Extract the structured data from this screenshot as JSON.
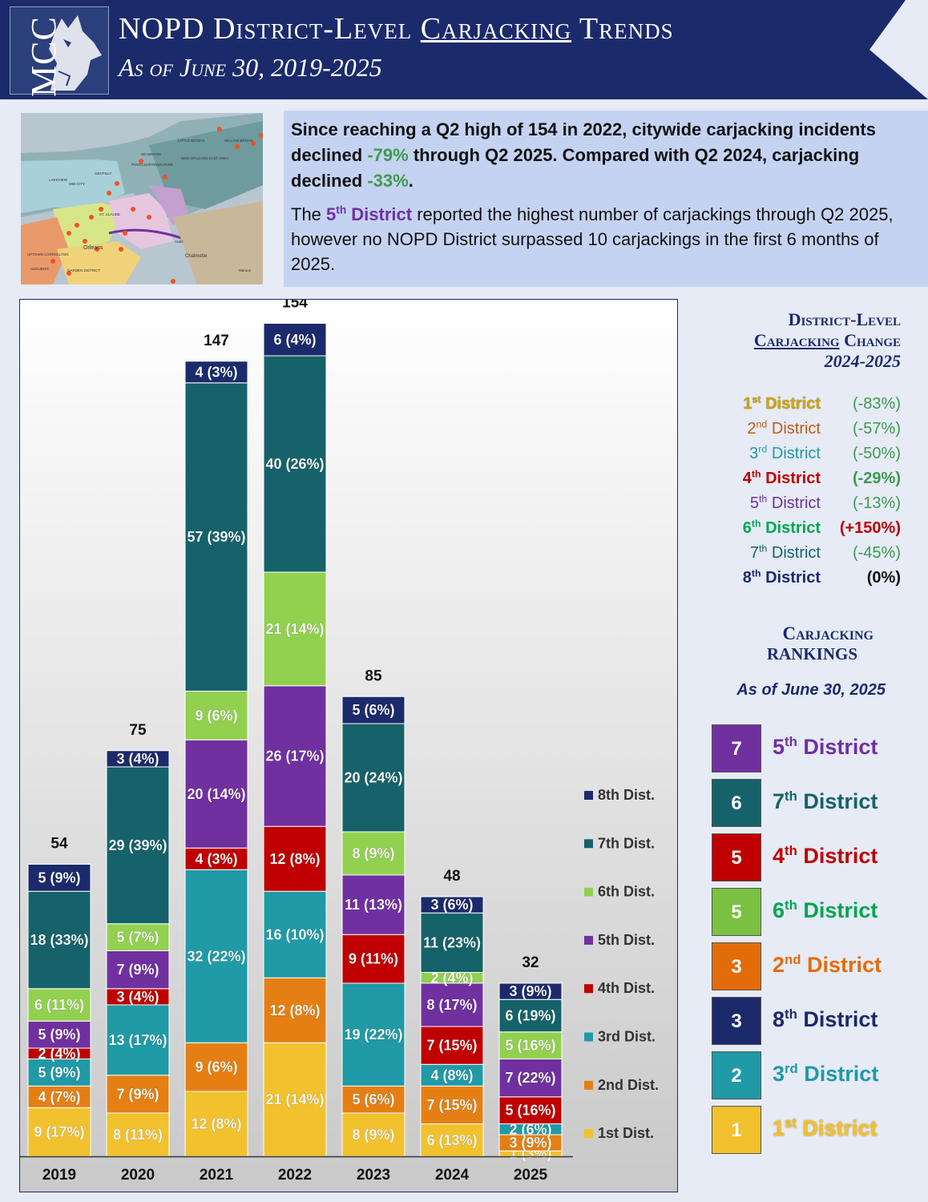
{
  "header": {
    "logo_text": "MCC",
    "title_pre": "NOPD District-Level ",
    "title_underlined": "Carjacking",
    "title_post": " Trends",
    "subtitle": "As of June 30, 2019-2025"
  },
  "colors": {
    "navy": "#1b2a6b",
    "teal_dark": "#16626a",
    "light_green": "#92d050",
    "purple": "#7030a0",
    "red": "#c00000",
    "teal": "#1f9aa6",
    "orange": "#e57f14",
    "yellow": "#f2c12e"
  },
  "map": {
    "labels": [
      "LITTLE WOODS",
      "WILLOW BROOK",
      "SEABROOK",
      "PONTCHARTRAIN PARK",
      "NEW ORLEANS EAST AREA",
      "MID-CITY",
      "LAKEVIEW",
      "GENTILLY",
      "ST. CLAUDE",
      "UPTOWN CARROLLTON",
      "AUDUBON",
      "GARDEN DISTRICT",
      "Chalmette",
      "Meraux",
      "Orleans",
      "Arabi"
    ]
  },
  "summary": {
    "p1_a": "Since reaching a Q2 high of 154 in 2022, citywide carjacking incidents declined ",
    "p1_b": "-79%",
    "p1_c": " through Q2 2025.  Compared with Q2 2024, carjacking declined ",
    "p1_d": "-33%",
    "p1_e": ".",
    "p2_a": "The ",
    "p2_b": "5",
    "p2_b_sup": "th",
    "p2_c": " District",
    "p2_d": " reported the highest number of carjackings through Q2 2025, however no NOPD District surpassed 10 carjackings in the first 6 months of 2025."
  },
  "chart_data": {
    "type": "bar",
    "stacked": true,
    "categories": [
      "2019",
      "2020",
      "2021",
      "2022",
      "2023",
      "2024",
      "2025"
    ],
    "totals": [
      "54",
      "75",
      "147",
      "154",
      "85",
      "48",
      "32"
    ],
    "ylim": [
      0,
      160
    ],
    "series": [
      {
        "name": "1st Dist.",
        "color": "#f2c12e",
        "values": [
          9,
          8,
          12,
          21,
          8,
          6,
          1
        ],
        "labels": [
          "9 (17%)",
          "8 (11%)",
          "12 (8%)",
          "21 (14%)",
          "8 (9%)",
          "6 (13%)",
          "1 (3%)"
        ]
      },
      {
        "name": "2nd Dist.",
        "color": "#e57f14",
        "values": [
          4,
          7,
          9,
          12,
          5,
          7,
          3
        ],
        "labels": [
          "4 (7%)",
          "7 (9%)",
          "9 (6%)",
          "12 (8%)",
          "5 (6%)",
          "7 (15%)",
          "3 (9%)"
        ]
      },
      {
        "name": "3rd Dist.",
        "color": "#1f9aa6",
        "values": [
          5,
          13,
          32,
          16,
          19,
          4,
          2
        ],
        "labels": [
          "5 (9%)",
          "13 (17%)",
          "32 (22%)",
          "16 (10%)",
          "19 (22%)",
          "4 (8%)",
          "2 (6%)"
        ]
      },
      {
        "name": "4th Dist.",
        "color": "#c00000",
        "values": [
          2,
          3,
          4,
          12,
          9,
          7,
          5
        ],
        "labels": [
          "2 (4%)",
          "3 (4%)",
          "4 (3%)",
          "12 (8%)",
          "9 (11%)",
          "7 (15%)",
          "5 (16%)"
        ]
      },
      {
        "name": "5th Dist.",
        "color": "#7030a0",
        "values": [
          5,
          7,
          20,
          26,
          11,
          8,
          7
        ],
        "labels": [
          "5 (9%)",
          "7 (9%)",
          "20 (14%)",
          "26 (17%)",
          "11 (13%)",
          "8 (17%)",
          "7 (22%)"
        ]
      },
      {
        "name": "6th Dist.",
        "color": "#92d050",
        "values": [
          6,
          5,
          9,
          21,
          8,
          2,
          5
        ],
        "labels": [
          "6 (11%)",
          "5 (7%)",
          "9 (6%)",
          "21 (14%)",
          "8 (9%)",
          "2 (4%)",
          "5 (16%)"
        ]
      },
      {
        "name": "7th Dist.",
        "color": "#16626a",
        "values": [
          18,
          29,
          57,
          40,
          20,
          11,
          6
        ],
        "labels": [
          "18 (33%)",
          "29 (39%)",
          "57 (39%)",
          "40 (26%)",
          "20 (24%)",
          "11 (23%)",
          "6 (19%)"
        ]
      },
      {
        "name": "8th Dist.",
        "color": "#1b2a6b",
        "values": [
          5,
          3,
          4,
          6,
          5,
          3,
          3
        ],
        "labels": [
          "5 (9%)",
          "3 (4%)",
          "4 (3%)",
          "6 (4%)",
          "5 (6%)",
          "3 (6%)",
          "3 (9%)"
        ]
      }
    ]
  },
  "change": {
    "title1": "District-Level",
    "title2_u": "Carjacking",
    "title2_rest": " Change",
    "title3": "2024-2025",
    "rows": [
      {
        "num": "1",
        "sup": "st",
        "name": " District",
        "val": "(-83%)",
        "color": "#d4a500",
        "val_color": "#3e9a4d",
        "outline": true
      },
      {
        "num": "2",
        "sup": "nd",
        "name": " District",
        "val": "(-57%)",
        "color": "#c55a11",
        "val_color": "#3e9a4d"
      },
      {
        "num": "3",
        "sup": "rd",
        "name": " District",
        "val": "(-50%)",
        "color": "#1f9aa6",
        "val_color": "#3e9a4d"
      },
      {
        "num": "4",
        "sup": "th",
        "name": " District",
        "val": "(-29%)",
        "color": "#c00000",
        "val_color": "#3e9a4d",
        "bold": true
      },
      {
        "num": "5",
        "sup": "th",
        "name": " District",
        "val": "(-13%)",
        "color": "#7030a0",
        "val_color": "#3e9a4d"
      },
      {
        "num": "6",
        "sup": "th",
        "name": " District",
        "val": "(+150%)",
        "color": "#00a651",
        "val_color": "#c00000",
        "bold": true
      },
      {
        "num": "7",
        "sup": "th",
        "name": " District",
        "val": "(-45%)",
        "color": "#16626a",
        "val_color": "#3e9a4d"
      },
      {
        "num": "8",
        "sup": "th",
        "name": " District",
        "val": "(0%)",
        "color": "#1b2a6b",
        "val_color": "#111111",
        "bold": true
      }
    ]
  },
  "rankings": {
    "title1": "Carjacking",
    "title2": "Rankings",
    "subtitle": "As of June 30, 2025",
    "rows": [
      {
        "value": "7",
        "num": "5",
        "sup": "th",
        "name": " District",
        "box": "#7030a0",
        "color": "#7030a0"
      },
      {
        "value": "6",
        "num": "7",
        "sup": "th",
        "name": " District",
        "box": "#16626a",
        "color": "#16626a"
      },
      {
        "value": "5",
        "num": "4",
        "sup": "th",
        "name": " District",
        "box": "#c00000",
        "color": "#c00000"
      },
      {
        "value": "5",
        "num": "6",
        "sup": "th",
        "name": " District",
        "box": "#7cc242",
        "color": "#00a651"
      },
      {
        "value": "3",
        "num": "2",
        "sup": "nd",
        "name": " District",
        "box": "#e36c0a",
        "color": "#e36c0a"
      },
      {
        "value": "3",
        "num": "8",
        "sup": "th",
        "name": " District",
        "box": "#1b2a6b",
        "color": "#1b2a6b"
      },
      {
        "value": "2",
        "num": "3",
        "sup": "rd",
        "name": " District",
        "box": "#1f9aa6",
        "color": "#1f9aa6"
      },
      {
        "value": "1",
        "num": "1",
        "sup": "st",
        "name": " District",
        "box": "#f2c12e",
        "color": "#f2c12e",
        "outline": true
      }
    ]
  }
}
